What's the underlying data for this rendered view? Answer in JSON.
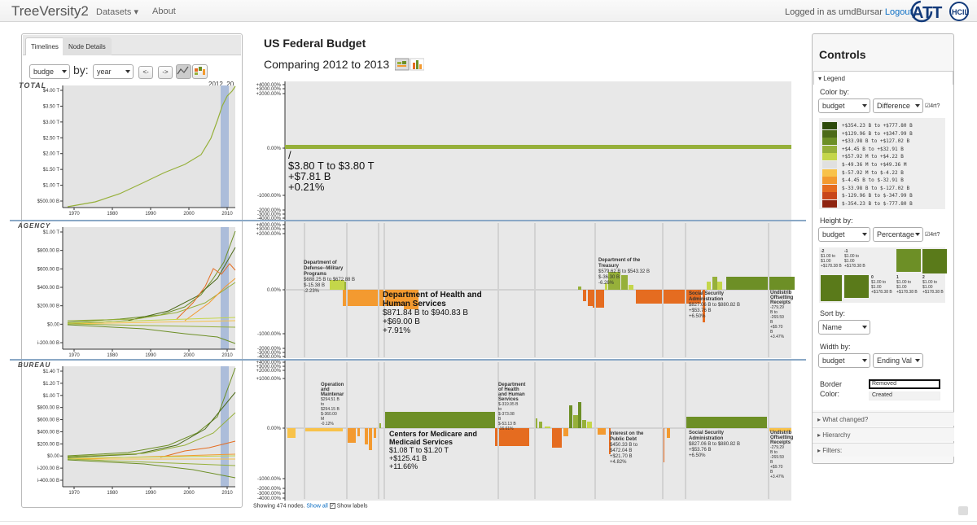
{
  "app": {
    "title": "TreeVersity2",
    "nav": [
      "Datasets",
      "About"
    ],
    "logged_in_text": "Logged in as umdBursar",
    "logout": "Logout"
  },
  "left": {
    "tabs": [
      "Timelines",
      "Node Details"
    ],
    "select_value": "budge",
    "by_label": "by:",
    "by_value": "year",
    "prev": "<-",
    "next": "->",
    "top_label": "2012_20",
    "levels": [
      "TOTAL",
      "AGENCY",
      "BUREAU"
    ],
    "total_y": [
      "$4.00 T",
      "$3.50 T",
      "$3.00 T",
      "$2.50 T",
      "$2.00 T",
      "$1.50 T",
      "$1.00 T",
      "$500.00 B"
    ],
    "agency_y": [
      "$1.00 T",
      "$800.00 B",
      "$600.00 B",
      "$400.00 B",
      "$200.00 B",
      "$0.00",
      "i-200.00 B"
    ],
    "bureau_y": [
      "$1.40 T",
      "$1.20 T",
      "$1.00 T",
      "$800.00 B",
      "$600.00 B",
      "$400.00 B",
      "$200.00 B",
      "$0.00",
      "i-200.00 B",
      "i-400.00 B"
    ],
    "x_ticks": [
      "1970",
      "1980",
      "1990",
      "2000",
      "2010"
    ]
  },
  "center": {
    "title": "US Federal Budget",
    "subtitle": "Comparing 2012 to 2013",
    "axis_top": [
      "+4000.00%",
      "+3000.00%",
      "+2000.00%",
      "0.00%",
      "-1000.00%",
      "-2000.00%",
      "-3000.00%",
      "-4000.00%"
    ],
    "axis_mid": [
      "+4000.00%",
      "+3000.00%",
      "+2000.00%",
      "0.00%",
      "-1000.00%",
      "-2000.00%",
      "-3000.00%",
      "-4000.00%"
    ],
    "axis_bot": [
      "+4000.00%",
      "+3000.00%",
      "+2000.00%",
      "+1000.00%",
      "0.00%",
      "-1000.00%",
      "-2000.00%",
      "-3000.00%",
      "-4000.00%"
    ],
    "total": {
      "name": "/",
      "range": "$3.80 T to $3.80 T",
      "delta": "+$7.81 B",
      "pct": "+0.21%"
    },
    "agency": {
      "dod": [
        "Department of",
        "Defense--Military",
        "Programs",
        "$688.25 B to $672.88 B",
        "$-15.38 B",
        "-2.23%"
      ],
      "hhs": {
        "name1": "Department of Health and",
        "name2": "Human Services",
        "range": "$871.84 B to $940.83 B",
        "delta": "+$69.00 B",
        "pct": "+7.91%"
      },
      "treasury": [
        "Department of the",
        "Treasury",
        "$579.62 B to $543.32 B",
        "$-36.30 B",
        "-6.26%"
      ],
      "ssa": [
        "Social Security",
        "Administration",
        "$827.06 B to $880.82 B",
        "+$53.76 B",
        "+6.50%"
      ],
      "undist": [
        "Undistrib",
        "Offsetting",
        "Receipts",
        "-279.29",
        "B to",
        "-269.59",
        "B",
        "+$9.70",
        "B",
        "+3.47%"
      ]
    },
    "bureau": {
      "opm": [
        "Operation",
        "and",
        "Maintenar",
        "$294.51 B",
        "to",
        "$294.15 B",
        "$-360.00",
        "M",
        "-0.12%"
      ],
      "hhs2": [
        "Department",
        "of Health",
        "and Human",
        "Services",
        "$-319.95 B",
        "to",
        "$-373.08",
        "B",
        "$-53.13 B",
        "-16.61%"
      ],
      "cms": {
        "name1": "Centers for Medicare and",
        "name2": "Medicaid Services",
        "range": "$1.08 T to $1.20 T",
        "delta": "+$125.41 B",
        "pct": "+11.66%"
      },
      "interest": [
        "Interest on the",
        "Public Debt",
        "$450.33 B to",
        "$472.04 B",
        "+$21.70 B",
        "+4.82%"
      ],
      "ssa": [
        "Social Security",
        "Administration",
        "$827.06 B to $880.82 B",
        "+$53.76 B",
        "+6.50%"
      ],
      "undist": [
        "Undistrib",
        "Offsetting",
        "Receipts",
        "-279.29",
        "B to",
        "-269.59",
        "B",
        "+$9.70",
        "B",
        "+3.47%"
      ]
    },
    "footer": {
      "text": "Showing 474 nodes.",
      "show_all": "Show all",
      "show_labels": "Show labels"
    }
  },
  "controls": {
    "title": "Controls",
    "legend": "Legend",
    "color_by": "Color by:",
    "color_sel1": "budget",
    "color_sel2": "Difference",
    "color_chk": "4rt?",
    "color_legend": [
      {
        "label": "+$354.23 B to +$777.80 B",
        "color": "#2d4a0b"
      },
      {
        "label": "+$129.96 B to +$347.99 B",
        "color": "#4c6a18"
      },
      {
        "label": "+$33.98 B to +$127.02 B",
        "color": "#6d8f26"
      },
      {
        "label": "+$4.45 B to +$32.91 B",
        "color": "#96b03a"
      },
      {
        "label": "+$57.92 M to +$4.22 B",
        "color": "#c4d64a"
      },
      {
        "label": "$-49.36 M to +$49.36 M",
        "color": "#e0e0e0"
      },
      {
        "label": "$-57.92 M to $-4.22 B",
        "color": "#f8c24a"
      },
      {
        "label": "$-4.45 B to $-32.91 B",
        "color": "#f39a30"
      },
      {
        "label": "$-33.98 B to $-127.02 B",
        "color": "#e56c20"
      },
      {
        "label": "$-129.96 B to $-347.99 B",
        "color": "#c8461a"
      },
      {
        "label": "$-354.23 B to $-777.80 B",
        "color": "#8e2410"
      }
    ],
    "height_by": "Height by:",
    "height_sel1": "budget",
    "height_sel2": "Percentage",
    "height_chk": "4rt?",
    "height_legend": [
      {
        "k": "-2",
        "v": "$1.00 to $1.00 +$178.38 B"
      },
      {
        "k": "-1",
        "v": "$1.00 to $1.00 +$178.38 B"
      },
      {
        "k": "0",
        "v": "$1.00 to $1.00 +$178.38 B"
      },
      {
        "k": "1",
        "v": "$1.00 to $1.00 +$178.38 B"
      },
      {
        "k": "2",
        "v": "$1.00 to $1.00 +$178.38 B"
      }
    ],
    "sort_by": "Sort by:",
    "sort_sel": "Name",
    "width_by": "Width by:",
    "width_sel1": "budget",
    "width_sel2": "Ending Val",
    "border": "Border Color:",
    "border_removed": "Removed",
    "border_created": "Created",
    "sections": [
      "What changed?",
      "Hierarchy",
      "Filters:"
    ]
  },
  "colors": {
    "pos": "#6d8f26",
    "neg": "#e56c20",
    "light_pos": "#96b03a",
    "light_neg": "#f39a30",
    "accent": "#0b6ec4"
  }
}
